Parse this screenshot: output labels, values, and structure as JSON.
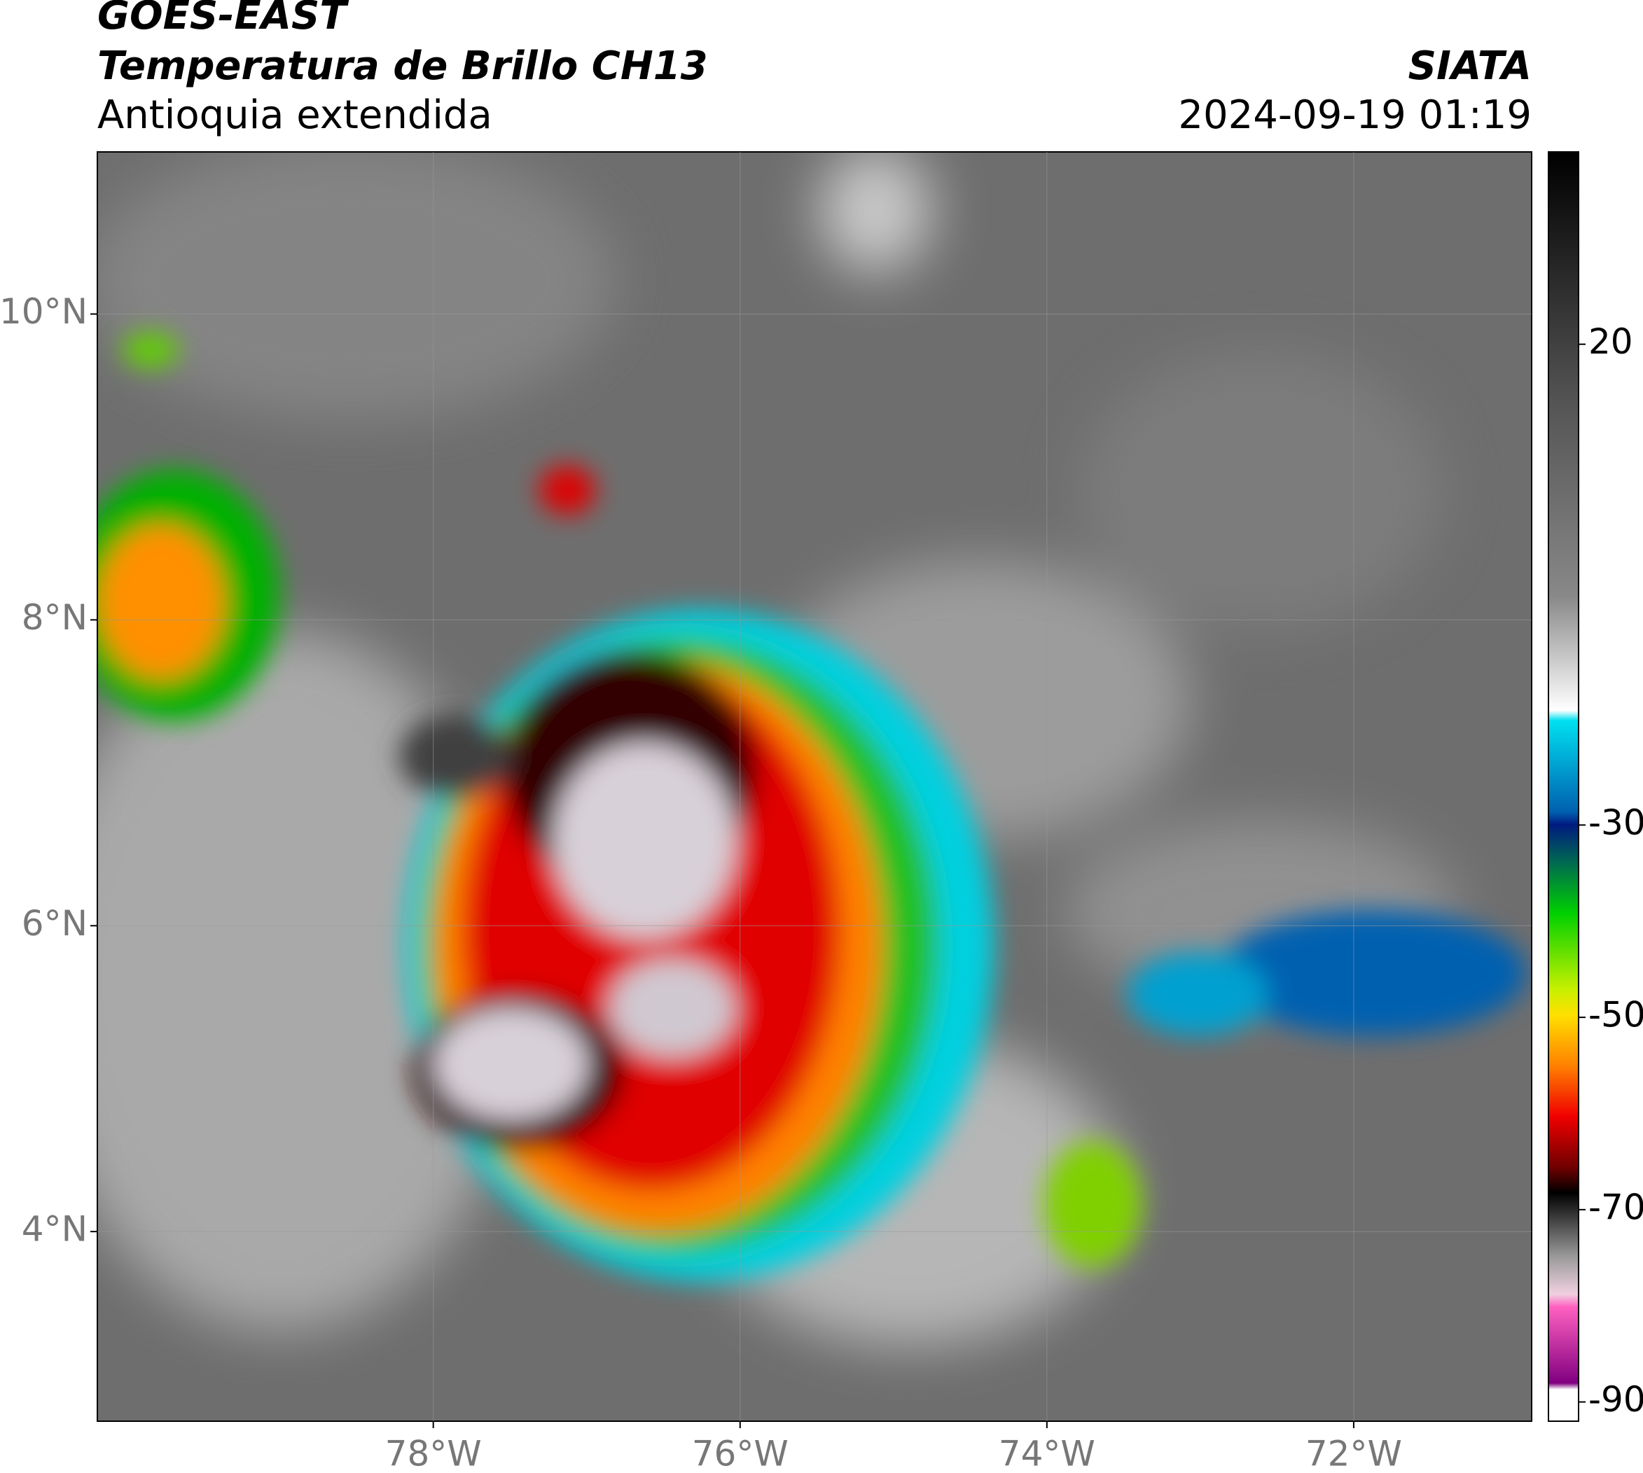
{
  "header": {
    "title": "GOES-EAST",
    "subtitle": "Temperatura de Brillo CH13",
    "region": "Antioquia extendida",
    "source": "SIATA",
    "datetime": "2024-09-19 01:19"
  },
  "map": {
    "lonlim": [
      -80.19,
      -70.84
    ],
    "latlim": [
      2.76,
      11.06
    ],
    "lat_ticks": [
      {
        "value": 4,
        "label": "4°N"
      },
      {
        "value": 6,
        "label": "6°N"
      },
      {
        "value": 8,
        "label": "8°N"
      },
      {
        "value": 10,
        "label": "10°N"
      }
    ],
    "lon_ticks": [
      {
        "value": -78,
        "label": "78°W"
      },
      {
        "value": -76,
        "label": "76°W"
      },
      {
        "value": -74,
        "label": "74°W"
      },
      {
        "value": -72,
        "label": "72°W"
      }
    ],
    "grid": true
  },
  "colorbar": {
    "lim": [
      -92,
      40
    ],
    "ticks": [
      20,
      -30,
      -50,
      -70,
      -90
    ]
  }
}
